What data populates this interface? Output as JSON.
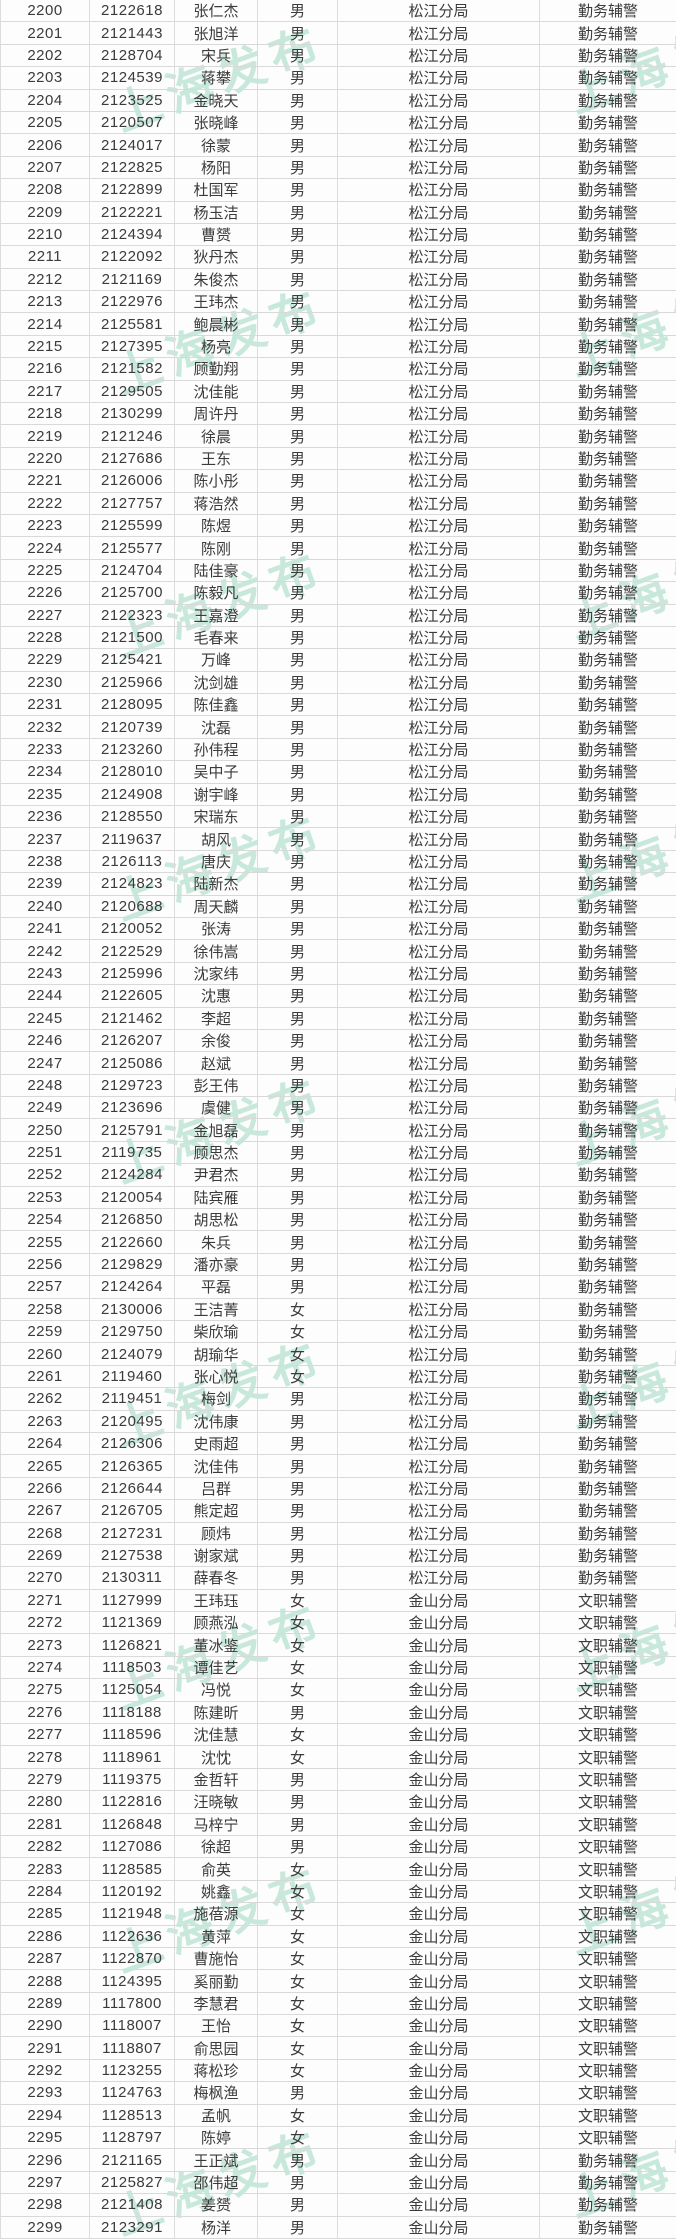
{
  "watermark": {
    "text": "上海发布",
    "color": "#7eccad"
  },
  "table": {
    "rows": [
      [
        2200,
        "2122618",
        "张仁杰",
        "男",
        "松江分局",
        "勤务辅警"
      ],
      [
        2201,
        "2121443",
        "张旭洋",
        "男",
        "松江分局",
        "勤务辅警"
      ],
      [
        2202,
        "2128704",
        "宋兵",
        "男",
        "松江分局",
        "勤务辅警"
      ],
      [
        2203,
        "2124539",
        "蒋攀",
        "男",
        "松江分局",
        "勤务辅警"
      ],
      [
        2204,
        "2123525",
        "金晓天",
        "男",
        "松江分局",
        "勤务辅警"
      ],
      [
        2205,
        "2120507",
        "张晓峰",
        "男",
        "松江分局",
        "勤务辅警"
      ],
      [
        2206,
        "2124017",
        "徐蒙",
        "男",
        "松江分局",
        "勤务辅警"
      ],
      [
        2207,
        "2122825",
        "杨阳",
        "男",
        "松江分局",
        "勤务辅警"
      ],
      [
        2208,
        "2122899",
        "杜国军",
        "男",
        "松江分局",
        "勤务辅警"
      ],
      [
        2209,
        "2122221",
        "杨玉洁",
        "男",
        "松江分局",
        "勤务辅警"
      ],
      [
        2210,
        "2124394",
        "曹赟",
        "男",
        "松江分局",
        "勤务辅警"
      ],
      [
        2211,
        "2122092",
        "狄丹杰",
        "男",
        "松江分局",
        "勤务辅警"
      ],
      [
        2212,
        "2121169",
        "朱俊杰",
        "男",
        "松江分局",
        "勤务辅警"
      ],
      [
        2213,
        "2122976",
        "王玮杰",
        "男",
        "松江分局",
        "勤务辅警"
      ],
      [
        2214,
        "2125581",
        "鲍晨彬",
        "男",
        "松江分局",
        "勤务辅警"
      ],
      [
        2215,
        "2127395",
        "杨亮",
        "男",
        "松江分局",
        "勤务辅警"
      ],
      [
        2216,
        "2121582",
        "顾勤翔",
        "男",
        "松江分局",
        "勤务辅警"
      ],
      [
        2217,
        "2129505",
        "沈佳能",
        "男",
        "松江分局",
        "勤务辅警"
      ],
      [
        2218,
        "2130299",
        "周许丹",
        "男",
        "松江分局",
        "勤务辅警"
      ],
      [
        2219,
        "2121246",
        "徐晨",
        "男",
        "松江分局",
        "勤务辅警"
      ],
      [
        2220,
        "2127686",
        "王东",
        "男",
        "松江分局",
        "勤务辅警"
      ],
      [
        2221,
        "2126006",
        "陈小彤",
        "男",
        "松江分局",
        "勤务辅警"
      ],
      [
        2222,
        "2127757",
        "蒋浩然",
        "男",
        "松江分局",
        "勤务辅警"
      ],
      [
        2223,
        "2125599",
        "陈煜",
        "男",
        "松江分局",
        "勤务辅警"
      ],
      [
        2224,
        "2125577",
        "陈刚",
        "男",
        "松江分局",
        "勤务辅警"
      ],
      [
        2225,
        "2124704",
        "陆佳豪",
        "男",
        "松江分局",
        "勤务辅警"
      ],
      [
        2226,
        "2125700",
        "陈毅凡",
        "男",
        "松江分局",
        "勤务辅警"
      ],
      [
        2227,
        "2122323",
        "王嘉澄",
        "男",
        "松江分局",
        "勤务辅警"
      ],
      [
        2228,
        "2121500",
        "毛春来",
        "男",
        "松江分局",
        "勤务辅警"
      ],
      [
        2229,
        "2125421",
        "万峰",
        "男",
        "松江分局",
        "勤务辅警"
      ],
      [
        2230,
        "2125966",
        "沈剑雄",
        "男",
        "松江分局",
        "勤务辅警"
      ],
      [
        2231,
        "2128095",
        "陈佳鑫",
        "男",
        "松江分局",
        "勤务辅警"
      ],
      [
        2232,
        "2120739",
        "沈磊",
        "男",
        "松江分局",
        "勤务辅警"
      ],
      [
        2233,
        "2123260",
        "孙伟程",
        "男",
        "松江分局",
        "勤务辅警"
      ],
      [
        2234,
        "2128010",
        "吴中子",
        "男",
        "松江分局",
        "勤务辅警"
      ],
      [
        2235,
        "2124908",
        "谢宇峰",
        "男",
        "松江分局",
        "勤务辅警"
      ],
      [
        2236,
        "2128550",
        "宋瑞东",
        "男",
        "松江分局",
        "勤务辅警"
      ],
      [
        2237,
        "2119637",
        "胡风",
        "男",
        "松江分局",
        "勤务辅警"
      ],
      [
        2238,
        "2126113",
        "唐庆",
        "男",
        "松江分局",
        "勤务辅警"
      ],
      [
        2239,
        "2124823",
        "陆新杰",
        "男",
        "松江分局",
        "勤务辅警"
      ],
      [
        2240,
        "2120688",
        "周天麟",
        "男",
        "松江分局",
        "勤务辅警"
      ],
      [
        2241,
        "2120052",
        "张涛",
        "男",
        "松江分局",
        "勤务辅警"
      ],
      [
        2242,
        "2122529",
        "徐伟嵩",
        "男",
        "松江分局",
        "勤务辅警"
      ],
      [
        2243,
        "2125996",
        "沈家纬",
        "男",
        "松江分局",
        "勤务辅警"
      ],
      [
        2244,
        "2122605",
        "沈惠",
        "男",
        "松江分局",
        "勤务辅警"
      ],
      [
        2245,
        "2121462",
        "李超",
        "男",
        "松江分局",
        "勤务辅警"
      ],
      [
        2246,
        "2126207",
        "余俊",
        "男",
        "松江分局",
        "勤务辅警"
      ],
      [
        2247,
        "2125086",
        "赵斌",
        "男",
        "松江分局",
        "勤务辅警"
      ],
      [
        2248,
        "2129723",
        "彭王伟",
        "男",
        "松江分局",
        "勤务辅警"
      ],
      [
        2249,
        "2123696",
        "虞健",
        "男",
        "松江分局",
        "勤务辅警"
      ],
      [
        2250,
        "2125791",
        "金旭磊",
        "男",
        "松江分局",
        "勤务辅警"
      ],
      [
        2251,
        "2119735",
        "顾思杰",
        "男",
        "松江分局",
        "勤务辅警"
      ],
      [
        2252,
        "2124284",
        "尹君杰",
        "男",
        "松江分局",
        "勤务辅警"
      ],
      [
        2253,
        "2120054",
        "陆宾雁",
        "男",
        "松江分局",
        "勤务辅警"
      ],
      [
        2254,
        "2126850",
        "胡思松",
        "男",
        "松江分局",
        "勤务辅警"
      ],
      [
        2255,
        "2122660",
        "朱兵",
        "男",
        "松江分局",
        "勤务辅警"
      ],
      [
        2256,
        "2129829",
        "潘亦豪",
        "男",
        "松江分局",
        "勤务辅警"
      ],
      [
        2257,
        "2124264",
        "平磊",
        "男",
        "松江分局",
        "勤务辅警"
      ],
      [
        2258,
        "2130006",
        "王洁菁",
        "女",
        "松江分局",
        "勤务辅警"
      ],
      [
        2259,
        "2129750",
        "柴欣瑜",
        "女",
        "松江分局",
        "勤务辅警"
      ],
      [
        2260,
        "2124079",
        "胡瑜华",
        "女",
        "松江分局",
        "勤务辅警"
      ],
      [
        2261,
        "2119460",
        "张心悦",
        "女",
        "松江分局",
        "勤务辅警"
      ],
      [
        2262,
        "2119451",
        "梅剑",
        "男",
        "松江分局",
        "勤务辅警"
      ],
      [
        2263,
        "2120495",
        "沈伟康",
        "男",
        "松江分局",
        "勤务辅警"
      ],
      [
        2264,
        "2126306",
        "史雨超",
        "男",
        "松江分局",
        "勤务辅警"
      ],
      [
        2265,
        "2126365",
        "沈佳伟",
        "男",
        "松江分局",
        "勤务辅警"
      ],
      [
        2266,
        "2126644",
        "吕群",
        "男",
        "松江分局",
        "勤务辅警"
      ],
      [
        2267,
        "2126705",
        "熊定超",
        "男",
        "松江分局",
        "勤务辅警"
      ],
      [
        2268,
        "2127231",
        "顾炜",
        "男",
        "松江分局",
        "勤务辅警"
      ],
      [
        2269,
        "2127538",
        "谢家斌",
        "男",
        "松江分局",
        "勤务辅警"
      ],
      [
        2270,
        "2130311",
        "薛春冬",
        "男",
        "松江分局",
        "勤务辅警"
      ],
      [
        2271,
        "1127999",
        "王玮珏",
        "女",
        "金山分局",
        "文职辅警"
      ],
      [
        2272,
        "1121369",
        "顾燕泓",
        "女",
        "金山分局",
        "文职辅警"
      ],
      [
        2273,
        "1126821",
        "董冰鉴",
        "女",
        "金山分局",
        "文职辅警"
      ],
      [
        2274,
        "1118503",
        "谭佳艺",
        "女",
        "金山分局",
        "文职辅警"
      ],
      [
        2275,
        "1125054",
        "冯悦",
        "女",
        "金山分局",
        "文职辅警"
      ],
      [
        2276,
        "1118188",
        "陈建昕",
        "男",
        "金山分局",
        "文职辅警"
      ],
      [
        2277,
        "1118596",
        "沈佳慧",
        "女",
        "金山分局",
        "文职辅警"
      ],
      [
        2278,
        "1118961",
        "沈忱",
        "女",
        "金山分局",
        "文职辅警"
      ],
      [
        2279,
        "1119375",
        "金哲轩",
        "男",
        "金山分局",
        "文职辅警"
      ],
      [
        2280,
        "1122816",
        "汪晓敏",
        "男",
        "金山分局",
        "文职辅警"
      ],
      [
        2281,
        "1126848",
        "马梓宁",
        "男",
        "金山分局",
        "文职辅警"
      ],
      [
        2282,
        "1127086",
        "徐超",
        "男",
        "金山分局",
        "文职辅警"
      ],
      [
        2283,
        "1128585",
        "俞英",
        "女",
        "金山分局",
        "文职辅警"
      ],
      [
        2284,
        "1120192",
        "姚鑫",
        "女",
        "金山分局",
        "文职辅警"
      ],
      [
        2285,
        "1121948",
        "施蓓源",
        "女",
        "金山分局",
        "文职辅警"
      ],
      [
        2286,
        "1122636",
        "黄萍",
        "女",
        "金山分局",
        "文职辅警"
      ],
      [
        2287,
        "1122870",
        "曹施怡",
        "女",
        "金山分局",
        "文职辅警"
      ],
      [
        2288,
        "1124395",
        "奚丽勤",
        "女",
        "金山分局",
        "文职辅警"
      ],
      [
        2289,
        "1117800",
        "李慧君",
        "女",
        "金山分局",
        "文职辅警"
      ],
      [
        2290,
        "1118007",
        "王怡",
        "女",
        "金山分局",
        "文职辅警"
      ],
      [
        2291,
        "1118807",
        "俞思园",
        "女",
        "金山分局",
        "文职辅警"
      ],
      [
        2292,
        "1123255",
        "蒋松珍",
        "女",
        "金山分局",
        "文职辅警"
      ],
      [
        2293,
        "1124763",
        "梅枫渔",
        "男",
        "金山分局",
        "文职辅警"
      ],
      [
        2294,
        "1128513",
        "孟帆",
        "女",
        "金山分局",
        "文职辅警"
      ],
      [
        2295,
        "1128797",
        "陈婷",
        "女",
        "金山分局",
        "文职辅警"
      ],
      [
        2296,
        "2121165",
        "王正斌",
        "男",
        "金山分局",
        "勤务辅警"
      ],
      [
        2297,
        "2125827",
        "邵伟超",
        "男",
        "金山分局",
        "勤务辅警"
      ],
      [
        2298,
        "2121408",
        "姜赟",
        "男",
        "金山分局",
        "勤务辅警"
      ],
      [
        2299,
        "2123291",
        "杨洋",
        "男",
        "金山分局",
        "勤务辅警"
      ]
    ]
  }
}
